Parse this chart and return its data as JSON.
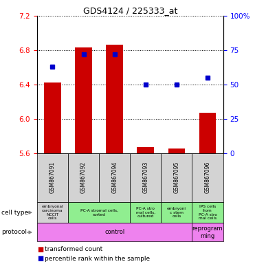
{
  "title": "GDS4124 / 225333_at",
  "samples": [
    "GSM867091",
    "GSM867092",
    "GSM867094",
    "GSM867093",
    "GSM867095",
    "GSM867096"
  ],
  "bar_values": [
    6.42,
    6.83,
    6.86,
    5.67,
    5.65,
    6.07
  ],
  "bar_bottom": 5.6,
  "percentile_values": [
    63,
    72,
    72,
    50,
    50,
    55
  ],
  "ylim": [
    5.6,
    7.2
  ],
  "yticks_left": [
    5.6,
    6.0,
    6.4,
    6.8,
    7.2
  ],
  "yticks_right": [
    0,
    25,
    50,
    75,
    100
  ],
  "bar_color": "#cc0000",
  "dot_color": "#0000cc",
  "cell_types": [
    {
      "label": "embryonal\ncarcinoma\nNCCIT\ncells",
      "span": [
        0,
        1
      ],
      "color": "#d3d3d3"
    },
    {
      "label": "PC-A stromal cells,\nsorted",
      "span": [
        1,
        3
      ],
      "color": "#90ee90"
    },
    {
      "label": "PC-A stro\nmal cells,\ncultured",
      "span": [
        3,
        4
      ],
      "color": "#90ee90"
    },
    {
      "label": "embryoni\nc stem\ncells",
      "span": [
        4,
        5
      ],
      "color": "#90ee90"
    },
    {
      "label": "IPS cells\nfrom\nPC-A stro\nmal cells",
      "span": [
        5,
        6
      ],
      "color": "#90ee90"
    }
  ],
  "protocols": [
    {
      "label": "control",
      "span": [
        0,
        5
      ],
      "color": "#ee82ee"
    },
    {
      "label": "reprogram\nming",
      "span": [
        5,
        6
      ],
      "color": "#ee82ee"
    }
  ],
  "legend_items": [
    {
      "color": "#cc0000",
      "label": "transformed count"
    },
    {
      "color": "#0000cc",
      "label": "percentile rank within the sample"
    }
  ],
  "background_color": "#ffffff"
}
